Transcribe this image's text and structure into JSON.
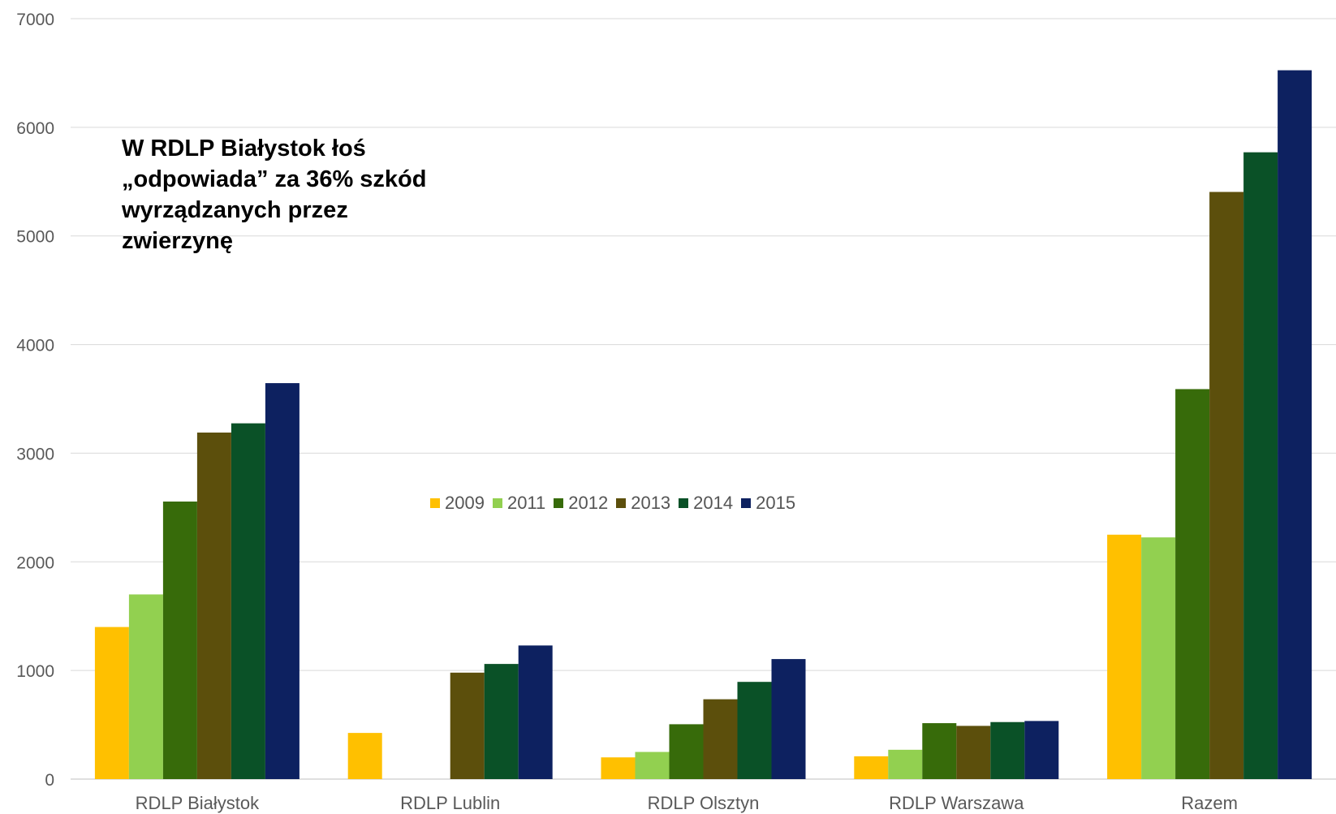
{
  "chart_data": {
    "type": "bar",
    "categories": [
      "RDLP Białystok",
      "RDLP Lublin",
      "RDLP Olsztyn",
      "RDLP Warszawa",
      "Razem"
    ],
    "series": [
      {
        "name": "2009",
        "color": "#FFC000",
        "values": [
          1400,
          425,
          200,
          210,
          2250
        ]
      },
      {
        "name": "2011",
        "color": "#92D050",
        "values": [
          1700,
          0,
          250,
          270,
          2225
        ]
      },
      {
        "name": "2012",
        "color": "#376B0A",
        "values": [
          2555,
          0,
          505,
          515,
          3590
        ]
      },
      {
        "name": "2013",
        "color": "#5C4F0C",
        "values": [
          3190,
          980,
          735,
          490,
          5405
        ]
      },
      {
        "name": "2014",
        "color": "#0A5127",
        "values": [
          3275,
          1060,
          895,
          525,
          5770
        ]
      },
      {
        "name": "2015",
        "color": "#0D2160",
        "values": [
          3645,
          1230,
          1105,
          535,
          6525
        ]
      }
    ],
    "yticks": [
      "0",
      "1000",
      "2000",
      "3000",
      "4000",
      "5000",
      "6000",
      "7000"
    ],
    "ylim": [
      0,
      7000
    ],
    "grid": true,
    "legend_position": "center",
    "annotation": "W RDLP Białystok łoś\n„odpowiada” za 36% szkód\nwyrządzanych przez\nzwierzynę"
  }
}
